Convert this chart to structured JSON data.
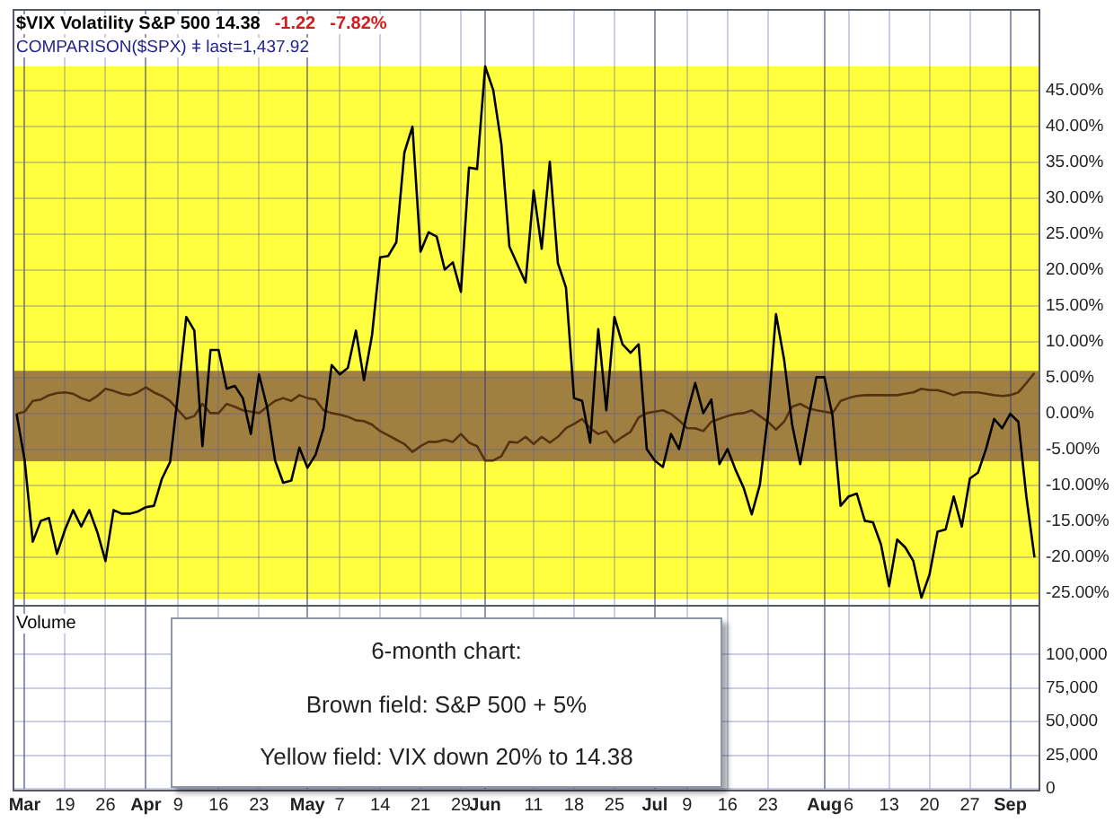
{
  "chart_data": [
    {
      "type": "line",
      "title": "$VIX Volatility S&P 500 14.38",
      "subtitle": "COMPARISON($SPX) ǂ last=1,437.92",
      "annotations": [
        "-1.22",
        "-7.82%"
      ],
      "categories": [
        null,
        null,
        null,
        null,
        null,
        null,
        null,
        null,
        null,
        null,
        null,
        null,
        null,
        null,
        null,
        null,
        null,
        null,
        null,
        null,
        null,
        null,
        null,
        null,
        null,
        null,
        null,
        null,
        null,
        null,
        null,
        null,
        null,
        null,
        null,
        null,
        null,
        null,
        null,
        null,
        null,
        null,
        null,
        null,
        null,
        null,
        null,
        null,
        null,
        null,
        null,
        null,
        null,
        null,
        null,
        null,
        null,
        null,
        null,
        null,
        null,
        null,
        null,
        null,
        null,
        null,
        null,
        null,
        null,
        null,
        null,
        null,
        null,
        null,
        null,
        null,
        null,
        null,
        null,
        null,
        null,
        null,
        null,
        null,
        null,
        null,
        null,
        null,
        null,
        null,
        null,
        null,
        null,
        null,
        null,
        null,
        null,
        null,
        null,
        null,
        null,
        null,
        null,
        null,
        null,
        null,
        null,
        null,
        null,
        null,
        null,
        null,
        null,
        null,
        null,
        null,
        null,
        null,
        null,
        null,
        null,
        null,
        null,
        null,
        null,
        null,
        null
      ],
      "series": [
        {
          "color": "#000000",
          "values": [
            0,
            -6.5,
            -17.8,
            -14.9,
            -14.5,
            -19.5,
            -16.1,
            -13.4,
            -15.7,
            -13.4,
            -16.5,
            -20.5,
            -13.4,
            -13.9,
            -13.9,
            -13.6,
            -13,
            -12.8,
            -9,
            -6.7,
            3,
            13.5,
            11.6,
            -4.5,
            8.9,
            8.9,
            3.5,
            3.9,
            2.2,
            -2.8,
            5.5,
            1,
            -6.5,
            -9.6,
            -9.3,
            -4.7,
            -7.5,
            -5.7,
            -2,
            6.8,
            5.5,
            6.4,
            11.6,
            4.7,
            11,
            21.8,
            22,
            23.9,
            36.4,
            40,
            22.6,
            25.3,
            24.7,
            20.1,
            21.1,
            17,
            34.3,
            34.1,
            48.4,
            45.1,
            37.6,
            23.3,
            20.8,
            18.3,
            31.1,
            23,
            35.1,
            21,
            17.6,
            2.2,
            1.8,
            -4,
            11.8,
            0.5,
            13.5,
            9.7,
            8.5,
            9.7,
            -4.9,
            -6.5,
            -7.4,
            -2.8,
            -4.9,
            0.1,
            4.3,
            0.1,
            2,
            -7,
            -4.9,
            -7.8,
            -10.3,
            -14,
            -9.9,
            -0.3,
            13.9,
            7.6,
            -1.5,
            -7,
            -0.7,
            5.1,
            5.1,
            -0.3,
            -12.8,
            -11.5,
            -11.1,
            -14.9,
            -15.1,
            -18.2,
            -24,
            -17.5,
            -18.6,
            -20.5,
            -25.6,
            -22.4,
            -16.4,
            -16.1,
            -11.5,
            -15.7,
            -9,
            -8.2,
            -4.9,
            -0.7,
            -2,
            0,
            -1.1,
            -11.6,
            -20
          ]
        },
        {
          "color": "#553311",
          "values": [
            0,
            0.3,
            1.8,
            2,
            2.6,
            2.9,
            3,
            2.8,
            2.2,
            1.8,
            2.5,
            3.5,
            3.2,
            2.8,
            2.6,
            3,
            3.7,
            3,
            2.5,
            1.8,
            0.5,
            -0.7,
            -0.3,
            1.4,
            0.1,
            0.1,
            1.4,
            1,
            0.5,
            0.3,
            0.1,
            1,
            1.8,
            2.2,
            1.8,
            2.6,
            2.2,
            2,
            0.5,
            0.1,
            -0.1,
            -0.4,
            -0.9,
            -1,
            -1.5,
            -2.4,
            -3,
            -3.6,
            -4.2,
            -5.3,
            -4.5,
            -3.9,
            -3.9,
            -3.6,
            -3.9,
            -2.8,
            -4,
            -4.5,
            -6.5,
            -6.5,
            -5.9,
            -3.9,
            -4,
            -3.2,
            -4.2,
            -3.2,
            -4,
            -3.2,
            -2,
            -1.4,
            -0.7,
            -2,
            -2.8,
            -2.4,
            -4,
            -3.2,
            -2.5,
            -0.5,
            0.1,
            0.3,
            0.5,
            0,
            -0.9,
            -2,
            -2,
            -2.4,
            -1.1,
            -0.7,
            -0.3,
            0,
            0.1,
            0.5,
            -0.3,
            -1.1,
            -2.2,
            -1.1,
            1,
            1.4,
            0.8,
            0.5,
            0.3,
            0.1,
            1.8,
            2.2,
            2.5,
            2.6,
            2.6,
            2.6,
            2.6,
            2.6,
            2.8,
            3,
            3.5,
            3.3,
            3.3,
            3,
            2.6,
            3,
            3,
            3,
            2.8,
            2.6,
            2.5,
            2.6,
            3,
            4.3,
            5.7
          ]
        }
      ],
      "ylim": [
        -26.6,
        56.4
      ],
      "yticks": [
        {
          "value": -25,
          "label": "-25.00%"
        },
        {
          "value": -20,
          "label": "-20.00%"
        },
        {
          "value": -15,
          "label": "-15.00%"
        },
        {
          "value": -10,
          "label": "-10.00%"
        },
        {
          "value": -5,
          "label": "-5.00%"
        },
        {
          "value": 0,
          "label": "0.00%"
        },
        {
          "value": 5,
          "label": "5.00%"
        },
        {
          "value": 10,
          "label": "10.00%"
        },
        {
          "value": 15,
          "label": "15.00%"
        },
        {
          "value": 20,
          "label": "20.00%"
        },
        {
          "value": 25,
          "label": "25.00%"
        },
        {
          "value": 30,
          "label": "30.00%"
        },
        {
          "value": 35,
          "label": "35.00%"
        },
        {
          "value": 40,
          "label": "40.00%"
        },
        {
          "value": 45,
          "label": "45.00%"
        }
      ],
      "bands": [
        {
          "axis": "y",
          "from": -25.8,
          "to": 48.4,
          "color": "#ffff40"
        },
        {
          "axis": "y",
          "from": -6.6,
          "to": 6,
          "color": "#a08040"
        }
      ],
      "grid": true,
      "marker": "none",
      "line_style": "solid",
      "tick_labels": "y"
    },
    {
      "type": "bar",
      "title": "Volume",
      "annotations": [
        "6-month chart:",
        "Brown field: S&P 500 + 5%",
        "Yellow field: VIX down 20% to 14.38"
      ],
      "categories": [
        null,
        "Mar",
        null,
        null,
        null,
        null,
        "19",
        null,
        null,
        null,
        null,
        "26",
        null,
        null,
        null,
        null,
        "Apr",
        null,
        null,
        null,
        "9",
        null,
        null,
        null,
        null,
        "16",
        null,
        null,
        null,
        null,
        "23",
        null,
        null,
        null,
        null,
        null,
        "May",
        null,
        null,
        null,
        "7",
        null,
        null,
        null,
        null,
        "14",
        null,
        null,
        null,
        null,
        "21",
        null,
        null,
        null,
        null,
        "29",
        null,
        null,
        "Jun",
        null,
        null,
        null,
        null,
        null,
        "11",
        null,
        null,
        null,
        null,
        "18",
        null,
        null,
        null,
        null,
        "25",
        null,
        null,
        null,
        null,
        "Jul",
        null,
        null,
        null,
        "9",
        null,
        null,
        null,
        null,
        "16",
        null,
        null,
        null,
        null,
        "23",
        null,
        null,
        null,
        null,
        null,
        null,
        "Aug",
        null,
        null,
        "6",
        null,
        null,
        null,
        null,
        "13",
        null,
        null,
        null,
        null,
        "20",
        null,
        null,
        null,
        null,
        "27",
        null,
        null,
        null,
        null,
        "Sep",
        null,
        null,
        null
      ],
      "values": [
        null,
        null,
        null,
        null,
        null,
        null,
        null,
        null,
        null,
        null,
        null,
        null,
        null,
        null,
        null,
        null,
        null,
        null,
        null,
        null,
        null,
        null,
        null,
        null,
        null,
        null,
        null,
        null,
        null,
        null,
        null,
        null,
        null,
        null,
        null,
        null,
        null,
        null,
        null,
        null,
        null,
        null,
        null,
        null,
        null,
        null,
        null,
        null,
        null,
        null,
        null,
        null,
        null,
        null,
        null,
        null,
        null,
        null,
        null,
        null,
        null,
        null,
        null,
        null,
        null,
        null,
        null,
        null,
        null,
        null,
        null,
        null,
        null,
        null,
        null,
        null,
        null,
        null,
        null,
        null,
        null,
        null,
        null,
        null,
        null,
        null,
        null,
        null,
        null,
        null,
        null,
        null,
        null,
        null,
        null,
        null,
        null,
        null,
        null,
        null,
        null,
        null,
        null,
        null,
        null,
        null,
        null,
        null,
        null,
        null,
        null,
        null,
        null,
        null,
        null,
        null,
        null,
        null,
        null,
        null,
        null,
        null,
        null,
        null,
        null,
        null,
        null
      ],
      "ylim": [
        0,
        137000
      ],
      "yticks": [
        0,
        {
          "value": 25000,
          "label": "25,000"
        },
        {
          "value": 50000,
          "label": "50,000"
        },
        {
          "value": 75000,
          "label": "75,000"
        },
        {
          "value": 100000,
          "label": "100,000"
        }
      ],
      "grid": true
    }
  ]
}
